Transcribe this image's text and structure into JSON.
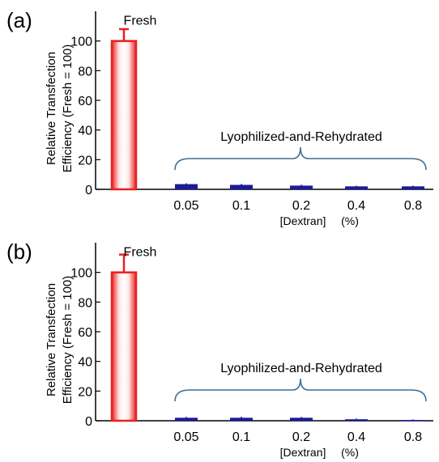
{
  "chart_data": [
    {
      "type": "bar",
      "panel_label": "(a)",
      "ylabel_line1": "Relative Transfection",
      "ylabel_line2": "Efficiency (Fresh = 100)",
      "xlabel_main": "[Dextran]",
      "xlabel_unit": "(%)",
      "ylim": [
        0,
        120
      ],
      "yticks": [
        0,
        20,
        40,
        60,
        80,
        100
      ],
      "fresh": {
        "label": "Fresh",
        "value": 100,
        "error": 8
      },
      "group_label": "Lyophilized-and-Rehydrated",
      "categories": [
        "0.05",
        "0.1",
        "0.2",
        "0.4",
        "0.8"
      ],
      "values": [
        3.5,
        3,
        2.5,
        2,
        2
      ],
      "errors": [
        0.5,
        0.5,
        0.5,
        0.4,
        0.4
      ],
      "colors": {
        "fresh_edge": "#e8201f",
        "treated": "#1a1a9c",
        "brace": "#3e6f94"
      }
    },
    {
      "type": "bar",
      "panel_label": "(b)",
      "ylabel_line1": "Relative Transfection",
      "ylabel_line2": "Efficiency (Fresh = 100)",
      "xlabel_main": "[Dextran]",
      "xlabel_unit": "(%)",
      "ylim": [
        0,
        120
      ],
      "yticks": [
        0,
        20,
        40,
        60,
        80,
        100
      ],
      "fresh": {
        "label": "Fresh",
        "value": 100,
        "error": 12
      },
      "group_label": "Lyophilized-and-Rehydrated",
      "categories": [
        "0.05",
        "0.1",
        "0.2",
        "0.4",
        "0.8"
      ],
      "values": [
        2,
        2,
        2,
        1,
        0.5
      ],
      "errors": [
        0.5,
        0.6,
        0.5,
        0.4,
        0.3
      ],
      "colors": {
        "fresh_edge": "#e8201f",
        "treated": "#1a1a9c",
        "brace": "#3e6f94"
      }
    }
  ]
}
